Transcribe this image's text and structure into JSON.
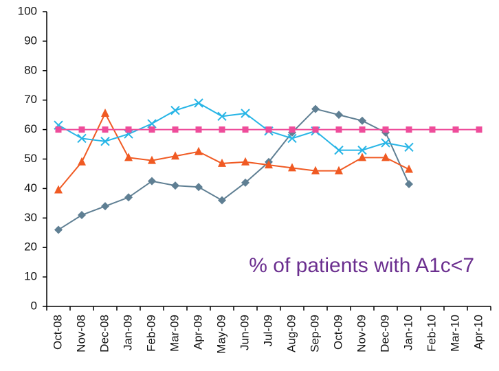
{
  "chart_data": {
    "type": "line",
    "annotation": "% of patients with A1c<7",
    "categories": [
      "Oct-08",
      "Nov-08",
      "Dec-08",
      "Jan-09",
      "Feb-09",
      "Mar-09",
      "Apr-09",
      "May-09",
      "Jun-09",
      "Jul-09",
      "Aug-09",
      "Sep-09",
      "Oct-09",
      "Nov-09",
      "Dec-09",
      "Jan-10",
      "Feb-10",
      "Mar-10",
      "Apr-10"
    ],
    "series": [
      {
        "color": "#5f7f93",
        "marker": "diamond",
        "values": [
          26,
          31,
          34,
          37,
          42.5,
          41,
          40.5,
          36,
          42,
          49,
          59,
          67,
          65,
          63,
          59,
          41.5,
          null,
          null,
          null
        ]
      },
      {
        "color": "#f05a23",
        "marker": "triangle",
        "values": [
          39.5,
          49,
          65.5,
          50.5,
          49.5,
          51,
          52.5,
          48.5,
          49,
          48,
          47,
          46,
          46,
          50.5,
          50.5,
          46.5,
          null,
          null,
          null
        ]
      },
      {
        "color": "#27b5e6",
        "marker": "x",
        "values": [
          61.5,
          57,
          56,
          58.5,
          62,
          66.5,
          69,
          64.5,
          65.5,
          59.5,
          57,
          59.5,
          53,
          53,
          55.5,
          54,
          null,
          null,
          null
        ]
      },
      {
        "color": "#ee4c9a",
        "marker": "square",
        "values": [
          60,
          60,
          60,
          60,
          60,
          60,
          60,
          60,
          60,
          60,
          60,
          60,
          60,
          60,
          60,
          60,
          60,
          60,
          60
        ]
      }
    ],
    "ylim": [
      0,
      100
    ],
    "yticks": [
      0,
      10,
      20,
      30,
      40,
      50,
      60,
      70,
      80,
      90,
      100
    ],
    "grid": false
  }
}
